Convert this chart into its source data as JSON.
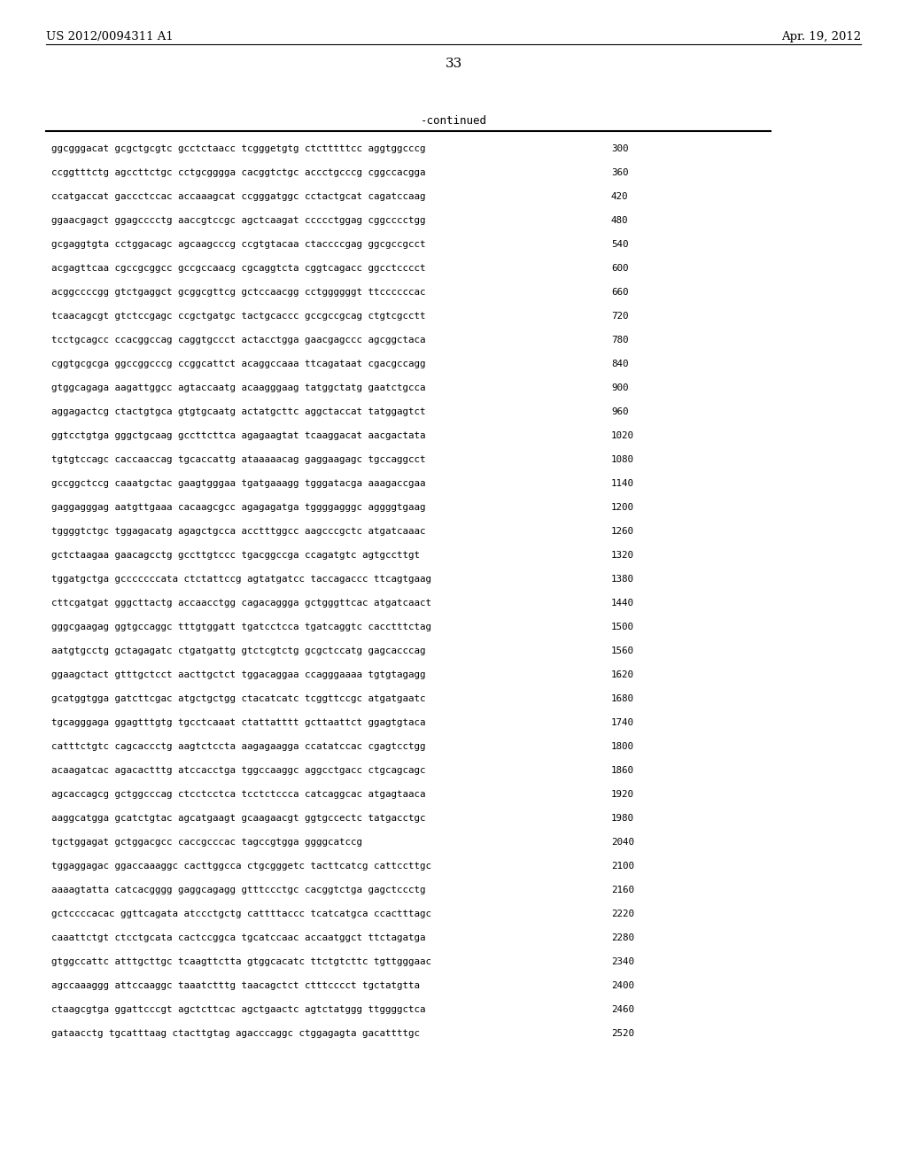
{
  "header_left": "US 2012/0094311 A1",
  "header_right": "Apr. 19, 2012",
  "page_number": "33",
  "continued_label": "-continued",
  "background_color": "#ffffff",
  "text_color": "#000000",
  "sequence_lines": [
    {
      "seq": "ggcgggacat gcgctgcgtc gcctctaacc tcgggetgtg ctctttttcc aggtggcccg",
      "num": "300"
    },
    {
      "seq": "ccggtttctg agccttctgc cctgcgggga cacggtctgc accctgcccg cggccacgga",
      "num": "360"
    },
    {
      "seq": "ccatgaccat gaccctccac accaaagcat ccgggatggc cctactgcat cagatccaag",
      "num": "420"
    },
    {
      "seq": "ggaacgagct ggagcccctg aaccgtccgc agctcaagat ccccctggag cggcccctgg",
      "num": "480"
    },
    {
      "seq": "gcgaggtgta cctggacagc agcaagcccg ccgtgtacaa ctaccccgag ggcgccgcct",
      "num": "540"
    },
    {
      "seq": "acgagttcaa cgccgcggcc gccgccaacg cgcaggtcta cggtcagacc ggcctcccct",
      "num": "600"
    },
    {
      "seq": "acggccccgg gtctgaggct gcggcgttcg gctccaacgg cctggggggt ttccccccac",
      "num": "660"
    },
    {
      "seq": "tcaacagcgt gtctccgagc ccgctgatgc tactgcaccc gccgccgcag ctgtcgcctt",
      "num": "720"
    },
    {
      "seq": "tcctgcagcc ccacggccag caggtgccct actacctgga gaacgagccc agcggctaca",
      "num": "780"
    },
    {
      "seq": "cggtgcgcga ggccggcccg ccggcattct acaggccaaa ttcagataat cgacgccagg",
      "num": "840"
    },
    {
      "seq": "gtggcagaga aagattggcc agtaccaatg acaagggaag tatggctatg gaatctgcca",
      "num": "900"
    },
    {
      "seq": "aggagactcg ctactgtgca gtgtgcaatg actatgcttc aggctaccat tatggagtct",
      "num": "960"
    },
    {
      "seq": "ggtcctgtga gggctgcaag gccttcttca agagaagtat tcaaggacat aacgactata",
      "num": "1020"
    },
    {
      "seq": "tgtgtccagc caccaaccag tgcaccattg ataaaaacag gaggaagagc tgccaggcct",
      "num": "1080"
    },
    {
      "seq": "gccggctccg caaatgctac gaagtgggaa tgatgaaagg tgggatacga aaagaccgaa",
      "num": "1140"
    },
    {
      "seq": "gaggagggag aatgttgaaa cacaagcgcc agagagatga tggggagggc aggggtgaag",
      "num": "1200"
    },
    {
      "seq": "tggggtctgc tggagacatg agagctgcca acctttggcc aagcccgctc atgatcaaac",
      "num": "1260"
    },
    {
      "seq": "gctctaagaa gaacagcctg gccttgtccc tgacggccga ccagatgtc agtgccttgt",
      "num": "1320"
    },
    {
      "seq": "tggatgctga gcccccccata ctctattccg agtatgatcc taccagaccc ttcagtgaag",
      "num": "1380"
    },
    {
      "seq": "cttcgatgat gggcttactg accaacctgg cagacaggga gctgggttcac atgatcaact",
      "num": "1440"
    },
    {
      "seq": "gggcgaagag ggtgccaggc tttgtggatt tgatcctcca tgatcaggtc cacctttctag",
      "num": "1500"
    },
    {
      "seq": "aatgtgcctg gctagagatc ctgatgattg gtctcgtctg gcgctccatg gagcacccag",
      "num": "1560"
    },
    {
      "seq": "ggaagctact gtttgctcct aacttgctct tggacaggaa ccagggaaaa tgtgtagagg",
      "num": "1620"
    },
    {
      "seq": "gcatggtgga gatcttcgac atgctgctgg ctacatcatc tcggttccgc atgatgaatc",
      "num": "1680"
    },
    {
      "seq": "tgcagggaga ggagtttgtg tgcctcaaat ctattatttt gcttaattct ggagtgtaca",
      "num": "1740"
    },
    {
      "seq": "catttctgtc cagcaccctg aagtctccta aagagaagga ccatatccac cgagtcctgg",
      "num": "1800"
    },
    {
      "seq": "acaagatcac agacactttg atccacctga tggccaaggc aggcctgacc ctgcagcagc",
      "num": "1860"
    },
    {
      "seq": "agcaccagcg gctggcccag ctcctcctca tcctctccca catcaggcac atgagtaaca",
      "num": "1920"
    },
    {
      "seq": "aaggcatgga gcatctgtac agcatgaagt gcaagaacgt ggtgccectc tatgacctgc",
      "num": "1980"
    },
    {
      "seq": "tgctggagat gctggacgcc caccgcccac tagccgtgga ggggcatccg",
      "num": "2040"
    },
    {
      "seq": "tggaggagac ggaccaaaggc cacttggcca ctgcgggetc tacttcatcg cattccttgc",
      "num": "2100"
    },
    {
      "seq": "aaaagtatta catcacgggg gaggcagagg gtttccctgc cacggtctga gagctccctg",
      "num": "2160"
    },
    {
      "seq": "gctccccacac ggttcagata atccctgctg cattttaccc tcatcatgca ccactttagc",
      "num": "2220"
    },
    {
      "seq": "caaattctgt ctcctgcata cactccggca tgcatccaac accaatggct ttctagatga",
      "num": "2280"
    },
    {
      "seq": "gtggccattc atttgcttgc tcaagttctta gtggcacatc ttctgtcttc tgttgggaac",
      "num": "2340"
    },
    {
      "seq": "agccaaaggg attccaaggc taaatctttg taacagctct ctttcccct tgctatgtta",
      "num": "2400"
    },
    {
      "seq": "ctaagcgtga ggattcccgt agctcttcac agctgaactc agtctatggg ttggggctca",
      "num": "2460"
    },
    {
      "seq": "gataacctg tgcatttaag ctacttgtag agacccaggc ctggagagta gacattttgc",
      "num": "2520"
    }
  ]
}
